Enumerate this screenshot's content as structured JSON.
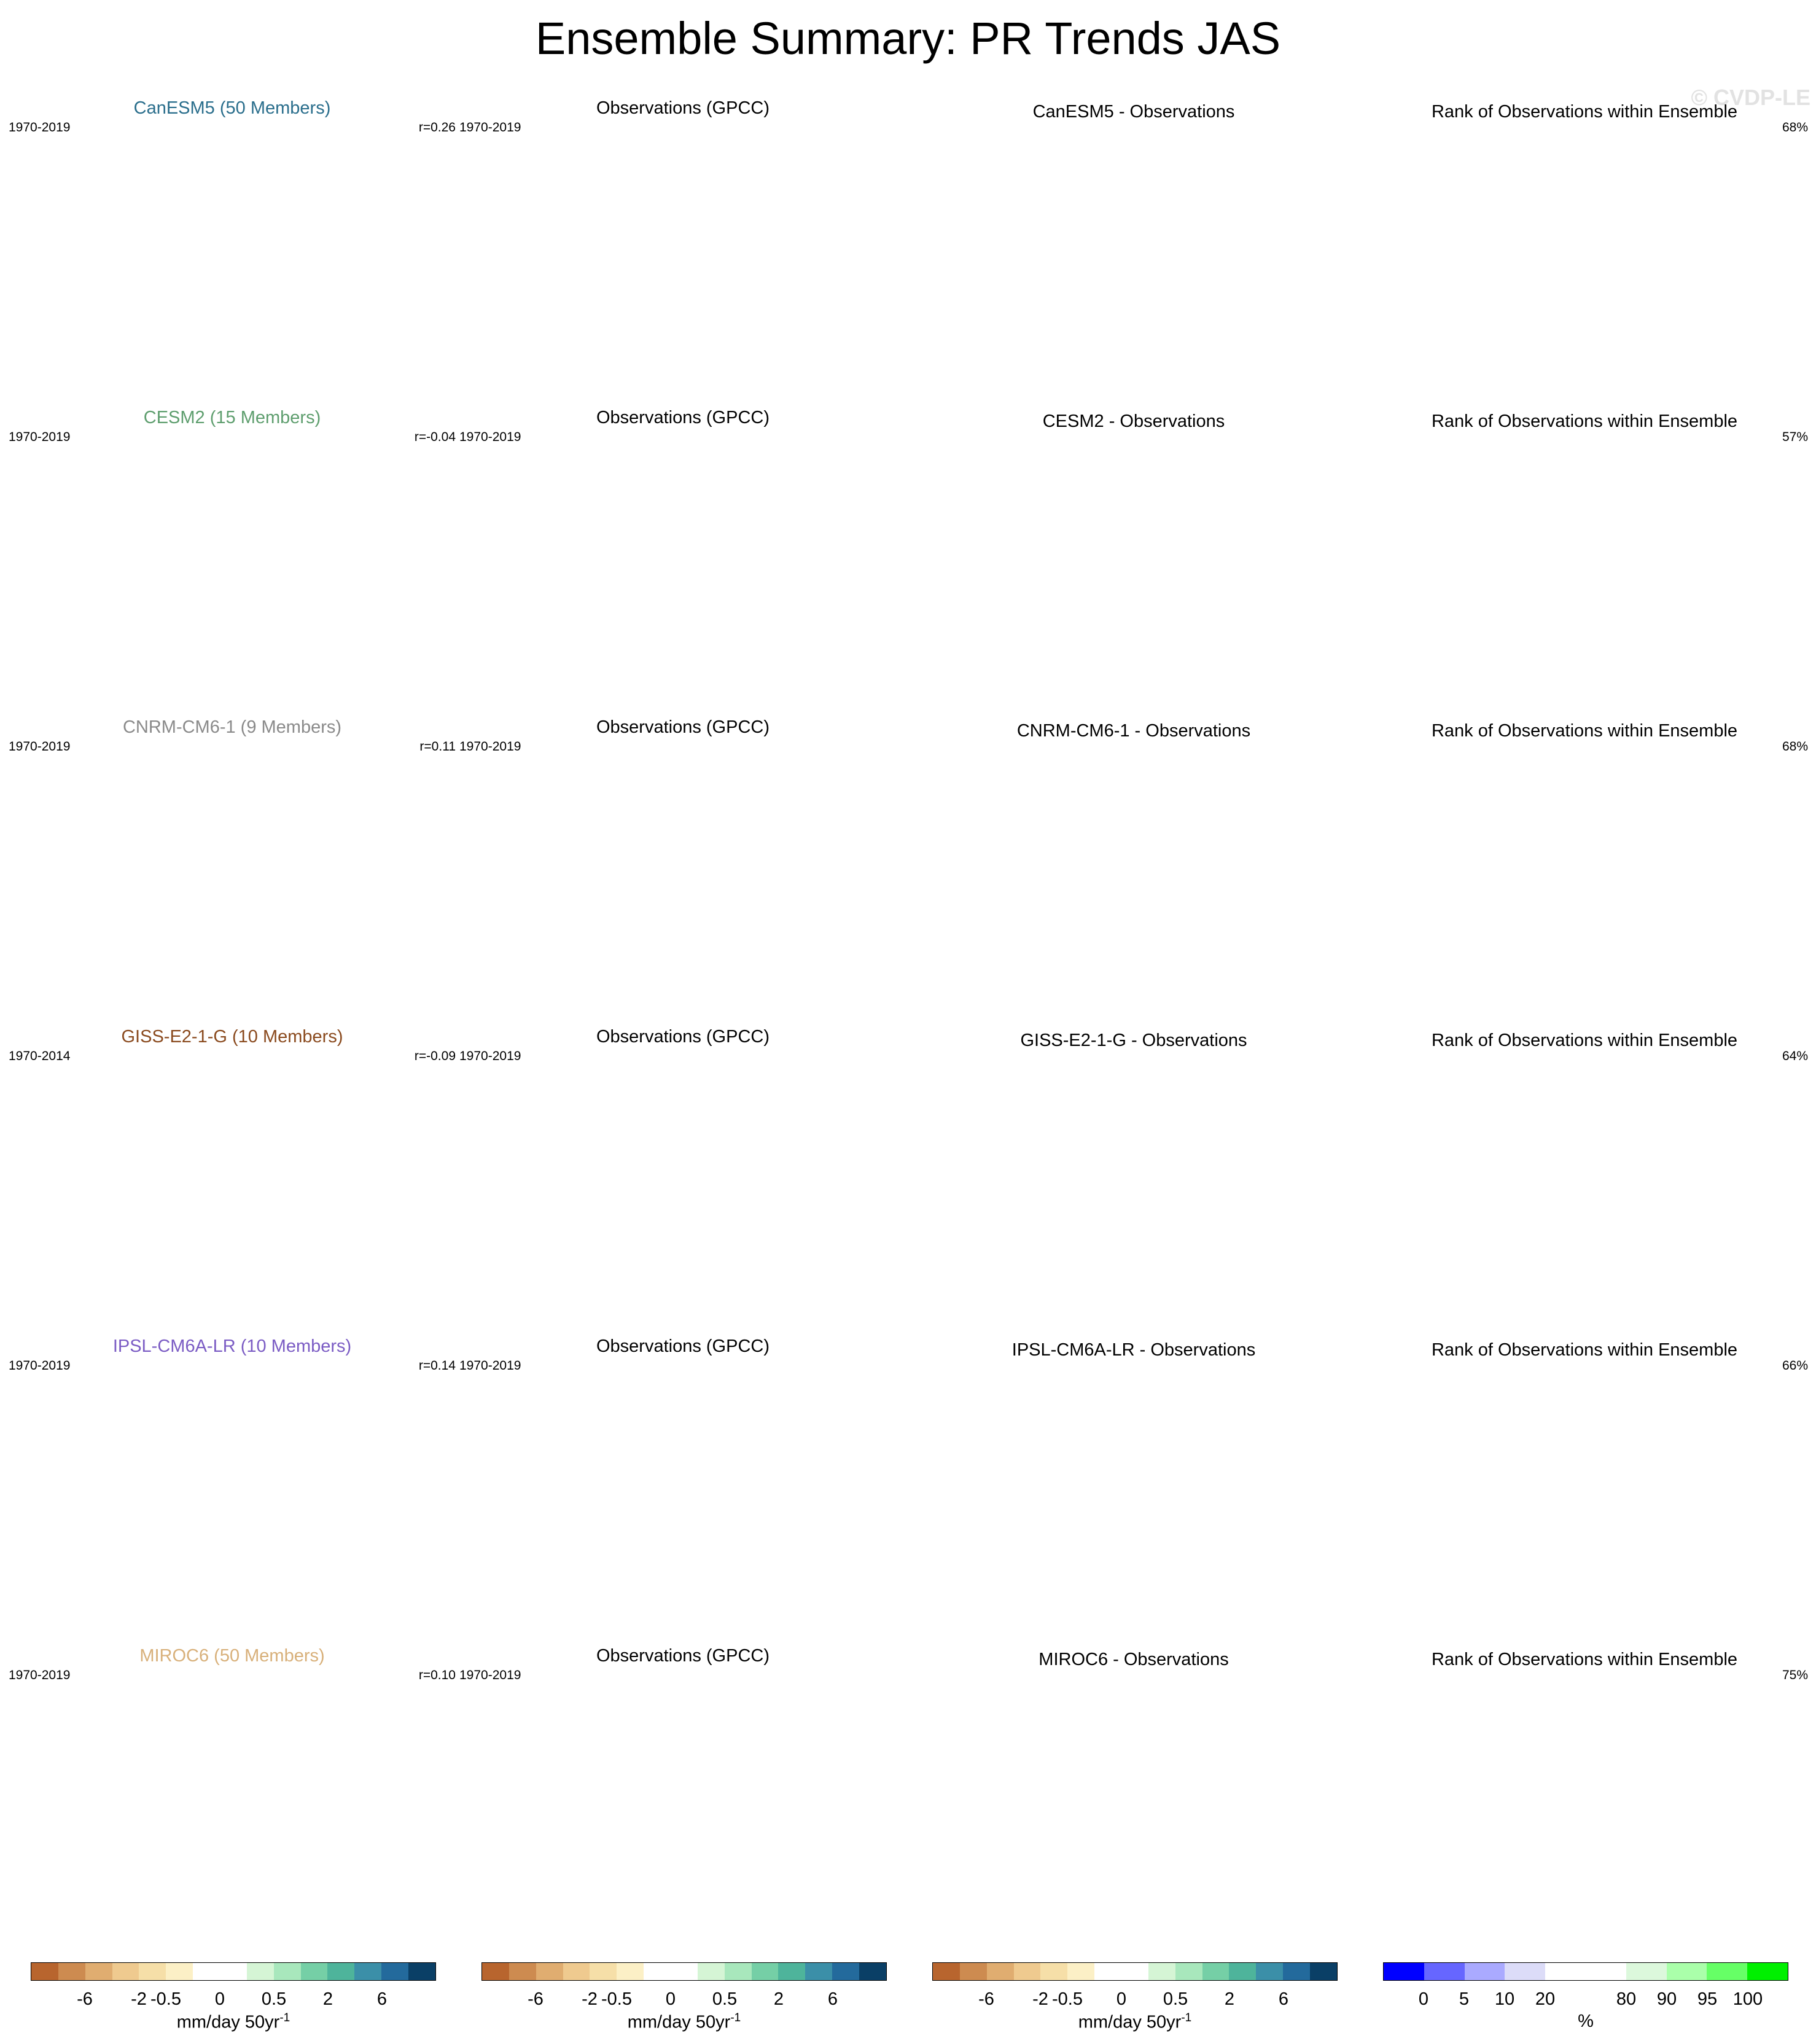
{
  "title": "Ensemble Summary: PR Trends JAS",
  "watermark": "© CVDP-LE",
  "colors": {
    "ocean_grey": "#e3e3e3",
    "outline": "#808080",
    "trend_palette": [
      "#b8652e",
      "#cd8b50",
      "#e0ad70",
      "#efca8f",
      "#f6dfa8",
      "#fcf0c6",
      "#ffffff",
      "#ffffff",
      "#d5f5d5",
      "#a8e7bc",
      "#75cfa6",
      "#4eb49b",
      "#3b8fa8",
      "#236a9c",
      "#0a3f66"
    ],
    "rank_palette": [
      "#0000ff",
      "#6666ff",
      "#aaaaff",
      "#dcdcf8",
      "#ffffff",
      "#ffffff",
      "#dcf8dc",
      "#aaffaa",
      "#66ff66",
      "#00f000"
    ]
  },
  "rows": [
    {
      "model": {
        "title": "CanESM5 (50 Members)",
        "title_color": "#2a6e8c",
        "period": "1970-2019",
        "stat": "r=0.26"
      },
      "obs": {
        "title": "Observations (GPCC)",
        "period": "1970-2019"
      },
      "diff": {
        "title": "CanESM5 - Observations"
      },
      "rank": {
        "title": "Rank of Observations within Ensemble",
        "stat": "68%"
      }
    },
    {
      "model": {
        "title": "CESM2 (15 Members)",
        "title_color": "#5e9e6e",
        "period": "1970-2019",
        "stat": "r=-0.04"
      },
      "obs": {
        "title": "Observations (GPCC)",
        "period": "1970-2019"
      },
      "diff": {
        "title": "CESM2 - Observations"
      },
      "rank": {
        "title": "Rank of Observations within Ensemble",
        "stat": "57%"
      }
    },
    {
      "model": {
        "title": "CNRM-CM6-1 (9 Members)",
        "title_color": "#8a8a8a",
        "period": "1970-2019",
        "stat": "r=0.11"
      },
      "obs": {
        "title": "Observations (GPCC)",
        "period": "1970-2019"
      },
      "diff": {
        "title": "CNRM-CM6-1 - Observations"
      },
      "rank": {
        "title": "Rank of Observations within Ensemble",
        "stat": "68%"
      }
    },
    {
      "model": {
        "title": "GISS-E2-1-G (10 Members)",
        "title_color": "#8a4a1e",
        "period": "1970-2014",
        "stat": "r=-0.09"
      },
      "obs": {
        "title": "Observations (GPCC)",
        "period": "1970-2019"
      },
      "diff": {
        "title": "GISS-E2-1-G - Observations"
      },
      "rank": {
        "title": "Rank of Observations within Ensemble",
        "stat": "64%"
      }
    },
    {
      "model": {
        "title": "IPSL-CM6A-LR (10 Members)",
        "title_color": "#7b5cc4",
        "period": "1970-2019",
        "stat": "r=0.14"
      },
      "obs": {
        "title": "Observations (GPCC)",
        "period": "1970-2019"
      },
      "diff": {
        "title": "IPSL-CM6A-LR - Observations"
      },
      "rank": {
        "title": "Rank of Observations within Ensemble",
        "stat": "66%"
      }
    },
    {
      "model": {
        "title": "MIROC6 (50 Members)",
        "title_color": "#d8b07a",
        "period": "1970-2019",
        "stat": "r=0.10"
      },
      "obs": {
        "title": "Observations (GPCC)",
        "period": "1970-2019"
      },
      "diff": {
        "title": "MIROC6 - Observations"
      },
      "rank": {
        "title": "Rank of Observations within Ensemble",
        "stat": "75%"
      }
    }
  ],
  "colorbars": {
    "trend": {
      "ticks": [
        "-6",
        "-2",
        "-0.5",
        "0",
        "0.5",
        "2",
        "6"
      ],
      "label": "mm/day 50yr",
      "label_sup": "-1"
    },
    "rank": {
      "ticks": [
        "0",
        "5",
        "10",
        "20",
        "80",
        "90",
        "95",
        "100"
      ],
      "label": "%"
    }
  }
}
